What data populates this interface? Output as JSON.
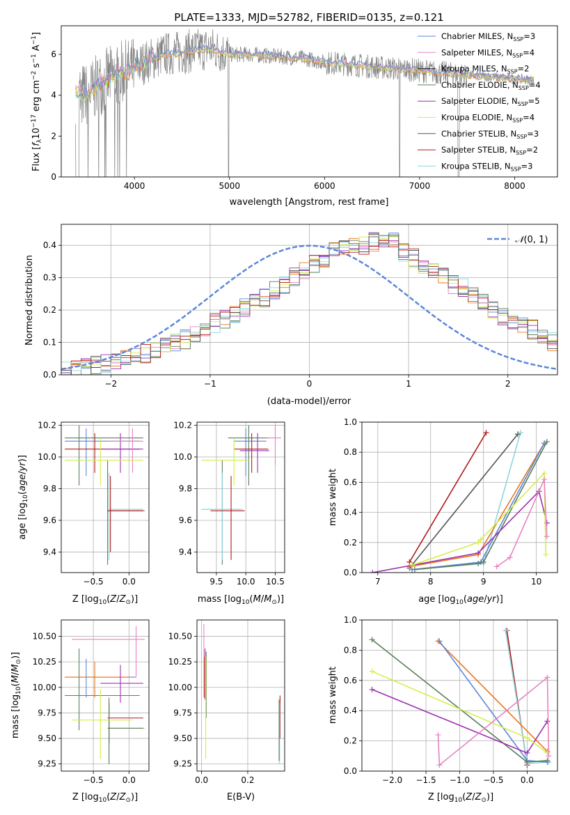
{
  "figure_title": "PLATE=1333, MJD=52782, FIBERID=0135, z=0.121",
  "colors": {
    "s1": "#5b86d9",
    "s2": "#e882c0",
    "s3": "#222222",
    "s4": "#5a7d5a",
    "s5": "#9b30b0",
    "s6": "#d4ee48",
    "s7": "#555555",
    "s8": "#b01818",
    "s9": "#8ad6de",
    "orange": "#e8761c",
    "gauss": "#5b86d9",
    "data": "#808080"
  },
  "chart_data": [
    {
      "type": "line",
      "title": "PLATE=1333, MJD=52782, FIBERID=0135, z=0.121",
      "xlabel": "wavelength [Angstrom, rest frame]",
      "ylabel": "Flux [f_λ 10^-17 erg cm^-2 s^-1 A^-1]",
      "xlim": [
        3230,
        8450
      ],
      "ylim": [
        0,
        7.4
      ],
      "xticks": [
        4000,
        5000,
        6000,
        7000,
        8000
      ],
      "yticks": [
        0,
        2,
        4,
        6
      ],
      "legend_position": "right",
      "legend": [
        {
          "name": "Chabrier MILES",
          "nssp": "N",
          "sub": "SSP",
          "eq": "=3"
        },
        {
          "name": "Salpeter MILES",
          "nssp": "N",
          "sub": "SSP",
          "eq": "=4"
        },
        {
          "name": "Kroupa MILES",
          "nssp": "N",
          "sub": "SSP",
          "eq": "=2"
        },
        {
          "name": "Chabrier ELODIE",
          "nssp": "N",
          "sub": "SSP",
          "eq": "=4"
        },
        {
          "name": "Salpeter ELODIE",
          "nssp": "N",
          "sub": "SSP",
          "eq": "=5"
        },
        {
          "name": "Kroupa ELODIE",
          "nssp": "N",
          "sub": "SSP",
          "eq": "=4"
        },
        {
          "name": "Chabrier STELIB",
          "nssp": "N",
          "sub": "SSP",
          "eq": "=3"
        },
        {
          "name": "Salpeter STELIB",
          "nssp": "N",
          "sub": "SSP",
          "eq": "=2"
        },
        {
          "name": "Kroupa STELIB",
          "nssp": "N",
          "sub": "SSP",
          "eq": "=3"
        }
      ],
      "continuum": {
        "x": [
          3380,
          3500,
          3650,
          3800,
          3950,
          4100,
          4300,
          4500,
          4800,
          5000,
          5200,
          5500,
          5800,
          6000,
          6300,
          6600,
          6900,
          7200,
          7600,
          8000,
          8200
        ],
        "y": [
          4.2,
          4.0,
          4.6,
          5.0,
          5.2,
          5.6,
          6.0,
          6.1,
          6.3,
          6.0,
          6.0,
          5.9,
          5.8,
          5.6,
          5.5,
          5.35,
          5.25,
          5.1,
          4.95,
          4.8,
          4.75
        ]
      }
    },
    {
      "type": "line",
      "xlabel": "(data-model)/error",
      "ylabel": "Normed distribution",
      "xlim": [
        -2.5,
        2.5
      ],
      "ylim": [
        0,
        0.465
      ],
      "xticks": [
        -2,
        -1,
        0,
        1,
        2
      ],
      "yticks": [
        0.0,
        0.1,
        0.2,
        0.3,
        0.4
      ],
      "legend": [
        "N(0,1)"
      ],
      "bin_width": 0.1,
      "hist_base": [
        0.018,
        0.02,
        0.025,
        0.03,
        0.035,
        0.04,
        0.05,
        0.06,
        0.065,
        0.075,
        0.09,
        0.1,
        0.11,
        0.13,
        0.15,
        0.16,
        0.17,
        0.19,
        0.21,
        0.23,
        0.24,
        0.26,
        0.28,
        0.3,
        0.32,
        0.34,
        0.36,
        0.38,
        0.39,
        0.4,
        0.4,
        0.41,
        0.42,
        0.41,
        0.38,
        0.36,
        0.34,
        0.32,
        0.3,
        0.28,
        0.27,
        0.25,
        0.22,
        0.2,
        0.18,
        0.16,
        0.15,
        0.14,
        0.12,
        0.1,
        0.09,
        0.08,
        0.07,
        0.06,
        0.055,
        0.05,
        0.045,
        0.04,
        0.035,
        0.03,
        0.03,
        0.028,
        0.025,
        0.022,
        0.02
      ]
    },
    {
      "type": "scatter",
      "xlabel": "Z [log10(Z/Z⊙)]",
      "ylabel": "age [log10(age/yr)]",
      "xlim": [
        -0.95,
        0.28
      ],
      "ylim": [
        9.27,
        10.22
      ],
      "xticks": [
        -0.5,
        0.0
      ],
      "yticks": [
        9.4,
        9.6,
        9.8,
        10.0,
        10.2
      ],
      "crosses": [
        {
          "x": -0.3,
          "y": 9.66,
          "x0": -0.3,
          "x1": 0.22,
          "y0": 9.32,
          "y1": 9.98,
          "c": "s4"
        },
        {
          "x": -0.28,
          "y": 9.67,
          "x0": -0.28,
          "x1": 0.2,
          "y0": 9.35,
          "y1": 9.9,
          "c": "s9"
        },
        {
          "x": -0.26,
          "y": 9.66,
          "x0": -0.3,
          "x1": 0.2,
          "y0": 9.4,
          "y1": 9.88,
          "c": "s8"
        },
        {
          "x": -0.7,
          "y": 10.12,
          "x0": -0.9,
          "x1": 0.2,
          "y0": 9.82,
          "y1": 10.2,
          "c": "s4"
        },
        {
          "x": -0.6,
          "y": 10.1,
          "x0": -0.9,
          "x1": 0.15,
          "y0": 9.88,
          "y1": 10.18,
          "c": "s1"
        },
        {
          "x": -0.48,
          "y": 10.05,
          "x0": -0.9,
          "x1": 0.15,
          "y0": 9.9,
          "y1": 10.15,
          "c": "s8"
        },
        {
          "x": -0.12,
          "y": 10.05,
          "x0": -0.4,
          "x1": 0.2,
          "y0": 9.9,
          "y1": 10.15,
          "c": "s5"
        },
        {
          "x": 0.05,
          "y": 10.1,
          "x0": -0.3,
          "x1": 0.2,
          "y0": 9.9,
          "y1": 10.18,
          "c": "s2"
        },
        {
          "x": -0.4,
          "y": 9.98,
          "x0": -0.9,
          "x1": 0.2,
          "y0": 9.82,
          "y1": 10.12,
          "c": "s6"
        }
      ]
    },
    {
      "type": "scatter",
      "xlabel": "mass [log10(M/M⊙)]",
      "xlim": [
        9.17,
        10.66
      ],
      "ylim": [
        9.27,
        10.22
      ],
      "xticks": [
        9.5,
        10.0,
        10.5
      ],
      "yticks": [
        9.4,
        9.6,
        9.8,
        10.0,
        10.2
      ],
      "crosses": [
        {
          "x": 9.6,
          "y": 9.67,
          "x0": 9.25,
          "x1": 9.9,
          "y0": 9.32,
          "y1": 9.98,
          "c": "s4"
        },
        {
          "x": 9.6,
          "y": 9.67,
          "x0": 9.25,
          "x1": 9.95,
          "y0": 9.35,
          "y1": 9.9,
          "c": "s9"
        },
        {
          "x": 9.75,
          "y": 9.66,
          "x0": 9.4,
          "x1": 9.98,
          "y0": 9.35,
          "y1": 9.88,
          "c": "s8"
        },
        {
          "x": 10.05,
          "y": 10.12,
          "x0": 9.7,
          "x1": 10.4,
          "y0": 9.82,
          "y1": 10.2,
          "c": "s4"
        },
        {
          "x": 10.0,
          "y": 10.1,
          "x0": 9.8,
          "x1": 10.35,
          "y0": 9.88,
          "y1": 10.18,
          "c": "s1"
        },
        {
          "x": 10.1,
          "y": 10.05,
          "x0": 9.8,
          "x1": 10.38,
          "y0": 9.9,
          "y1": 10.15,
          "c": "s8"
        },
        {
          "x": 10.2,
          "y": 10.04,
          "x0": 9.9,
          "x1": 10.4,
          "y0": 9.9,
          "y1": 10.15,
          "c": "s5"
        },
        {
          "x": 10.5,
          "y": 10.12,
          "x0": 10.35,
          "x1": 10.6,
          "y0": 9.95,
          "y1": 10.2,
          "c": "s2"
        },
        {
          "x": 9.8,
          "y": 9.98,
          "x0": 9.25,
          "x1": 10.05,
          "y0": 9.82,
          "y1": 10.12,
          "c": "s6"
        }
      ]
    },
    {
      "type": "line",
      "xlabel": "age [log10(age/yr)]",
      "ylabel": "mass weight",
      "xlim": [
        6.7,
        10.4
      ],
      "ylim": [
        0,
        1.0
      ],
      "xticks": [
        7,
        8,
        9,
        10
      ],
      "yticks": [
        0.0,
        0.2,
        0.4,
        0.6,
        0.8,
        1.0
      ],
      "series": [
        {
          "c": "s8",
          "x": [
            7.6,
            9.05
          ],
          "y": [
            0.07,
            0.93
          ]
        },
        {
          "c": "s9",
          "x": [
            7.65,
            9.0,
            9.7
          ],
          "y": [
            0.02,
            0.06,
            0.93
          ]
        },
        {
          "c": "s7",
          "x": [
            7.6,
            9.65
          ],
          "y": [
            0.03,
            0.92
          ]
        },
        {
          "c": "orange",
          "x": [
            7.6,
            8.9,
            10.15
          ],
          "y": [
            0.04,
            0.12,
            0.86
          ]
        },
        {
          "c": "s1",
          "x": [
            7.65,
            8.95,
            10.15
          ],
          "y": [
            0.02,
            0.07,
            0.86
          ]
        },
        {
          "c": "s4",
          "x": [
            7.7,
            8.9,
            9.0,
            10.2
          ],
          "y": [
            0.02,
            0.06,
            0.07,
            0.87
          ]
        },
        {
          "c": "s5",
          "x": [
            6.9,
            8.9,
            10.05,
            10.2
          ],
          "y": [
            0.0,
            0.13,
            0.54,
            0.33
          ]
        },
        {
          "c": "s6",
          "x": [
            7.65,
            8.9,
            8.95,
            10.15,
            10.18
          ],
          "y": [
            0.05,
            0.2,
            0.22,
            0.66,
            0.12
          ]
        },
        {
          "c": "s2",
          "x": [
            9.25,
            9.5,
            10.15,
            10.2
          ],
          "y": [
            0.04,
            0.1,
            0.62,
            0.24
          ]
        }
      ]
    },
    {
      "type": "scatter",
      "xlabel": "Z [log10(Z/Z⊙)]",
      "ylabel": "mass [log10(M/M⊙)]",
      "xlim": [
        -0.95,
        0.28
      ],
      "ylim": [
        9.18,
        10.66
      ],
      "xticks": [
        -0.5,
        0.0
      ],
      "yticks": [
        9.25,
        9.5,
        9.75,
        10.0,
        10.25,
        10.5
      ],
      "crosses": [
        {
          "x": -0.28,
          "y": 9.6,
          "x0": -0.28,
          "x1": 0.22,
          "y0": 9.25,
          "y1": 9.85,
          "c": "s9"
        },
        {
          "x": -0.28,
          "y": 9.7,
          "x0": -0.3,
          "x1": 0.2,
          "y0": 9.45,
          "y1": 9.85,
          "c": "s8"
        },
        {
          "x": -0.28,
          "y": 9.6,
          "x0": -0.3,
          "x1": 0.2,
          "y0": 9.25,
          "y1": 9.9,
          "c": "s4"
        },
        {
          "x": -0.7,
          "y": 9.92,
          "x0": -0.9,
          "x1": 0.15,
          "y0": 9.58,
          "y1": 10.38,
          "c": "s4"
        },
        {
          "x": -0.6,
          "y": 10.1,
          "x0": -0.9,
          "x1": 0.1,
          "y0": 9.9,
          "y1": 10.28,
          "c": "s1"
        },
        {
          "x": -0.48,
          "y": 10.1,
          "x0": -0.9,
          "x1": 0.0,
          "y0": 9.9,
          "y1": 10.25,
          "c": "orange"
        },
        {
          "x": -0.12,
          "y": 10.04,
          "x0": -0.4,
          "x1": 0.2,
          "y0": 9.85,
          "y1": 10.22,
          "c": "s5"
        },
        {
          "x": 0.1,
          "y": 10.47,
          "x0": -0.8,
          "x1": 0.22,
          "y0": 10.1,
          "y1": 10.6,
          "c": "s2"
        },
        {
          "x": -0.4,
          "y": 9.68,
          "x0": -0.8,
          "x1": 0.05,
          "y0": 9.3,
          "y1": 9.98,
          "c": "s6"
        }
      ]
    },
    {
      "type": "scatter",
      "xlabel": "E(B-V)",
      "xlim": [
        -0.02,
        0.36
      ],
      "ylim": [
        9.18,
        10.66
      ],
      "xticks": [
        0.0,
        0.2
      ],
      "yticks": [
        9.25,
        9.5,
        9.75,
        10.0,
        10.25,
        10.5
      ],
      "crosses": [
        {
          "x": 0.01,
          "y": 10.1,
          "y0": 9.9,
          "y1": 10.62,
          "c": "s2"
        },
        {
          "x": 0.015,
          "y": 10.05,
          "y0": 9.88,
          "y1": 10.38,
          "c": "s5"
        },
        {
          "x": 0.02,
          "y": 10.0,
          "y0": 9.7,
          "y1": 10.35,
          "c": "s4"
        },
        {
          "x": 0.018,
          "y": 9.9,
          "y0": 9.3,
          "y1": 10.3,
          "c": "s6"
        },
        {
          "x": 0.012,
          "y": 10.05,
          "y0": 9.9,
          "y1": 10.3,
          "c": "orange"
        },
        {
          "x": 0.34,
          "y": 9.85,
          "y0": 9.5,
          "y1": 9.92,
          "c": "s8"
        },
        {
          "x": 0.338,
          "y": 9.7,
          "y0": 9.25,
          "y1": 9.85,
          "c": "s9"
        },
        {
          "x": 0.336,
          "y": 9.72,
          "y0": 9.28,
          "y1": 9.88,
          "c": "s4"
        }
      ]
    },
    {
      "type": "line",
      "xlabel": "Z [log10(Z/Z⊙)]",
      "ylabel": "mass weight",
      "xlim": [
        -2.45,
        0.45
      ],
      "ylim": [
        0,
        1.0
      ],
      "xticks": [
        -2.0,
        -1.5,
        -1.0,
        -0.5,
        0.0
      ],
      "yticks": [
        0.0,
        0.2,
        0.4,
        0.6,
        0.8,
        1.0
      ],
      "series": [
        {
          "c": "s8",
          "x": [
            -0.3,
            0.0
          ],
          "y": [
            0.93,
            0.04
          ]
        },
        {
          "c": "s9",
          "x": [
            -0.32,
            0.0,
            0.32
          ],
          "y": [
            0.93,
            0.05,
            0.06
          ]
        },
        {
          "c": "orange",
          "x": [
            -1.32,
            0.3
          ],
          "y": [
            0.86,
            0.13
          ]
        },
        {
          "c": "s1",
          "x": [
            -1.3,
            0.0,
            0.3
          ],
          "y": [
            0.86,
            0.07,
            0.06
          ]
        },
        {
          "c": "s4",
          "x": [
            -2.3,
            0.0,
            0.3
          ],
          "y": [
            0.87,
            0.06,
            0.07
          ]
        },
        {
          "c": "s5",
          "x": [
            -2.3,
            0.0,
            0.3
          ],
          "y": [
            0.54,
            0.12,
            0.33
          ]
        },
        {
          "c": "s6",
          "x": [
            -2.3,
            0.0,
            0.3
          ],
          "y": [
            0.66,
            0.22,
            0.12
          ]
        },
        {
          "c": "s2",
          "x": [
            -1.32,
            -1.3,
            0.3,
            0.32
          ],
          "y": [
            0.24,
            0.04,
            0.62,
            0.1
          ]
        }
      ]
    }
  ]
}
